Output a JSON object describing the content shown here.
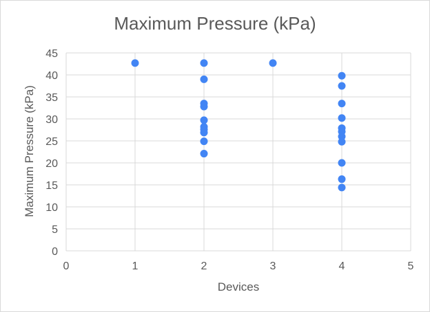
{
  "chart_data": {
    "type": "scatter",
    "title": "Maximum Pressure (kPa)",
    "xlabel": "Devices",
    "ylabel": "Maximum Pressure (kPa)",
    "xlim": [
      0,
      5
    ],
    "ylim": [
      0,
      45
    ],
    "xticks": [
      "0",
      "1",
      "2",
      "3",
      "4",
      "5"
    ],
    "yticks": [
      "0",
      "5",
      "10",
      "15",
      "20",
      "25",
      "30",
      "35",
      "40",
      "45"
    ],
    "grid": true,
    "legend": "none",
    "point_color": "#4285f4",
    "points": [
      {
        "x": 1,
        "y": 42.7
      },
      {
        "x": 2,
        "y": 42.7
      },
      {
        "x": 2,
        "y": 39.0
      },
      {
        "x": 2,
        "y": 33.5
      },
      {
        "x": 2,
        "y": 32.8
      },
      {
        "x": 2,
        "y": 29.7
      },
      {
        "x": 2,
        "y": 28.2
      },
      {
        "x": 2,
        "y": 27.6
      },
      {
        "x": 2,
        "y": 26.9
      },
      {
        "x": 2,
        "y": 24.9
      },
      {
        "x": 2,
        "y": 22.1
      },
      {
        "x": 3,
        "y": 42.7
      },
      {
        "x": 4,
        "y": 39.8
      },
      {
        "x": 4,
        "y": 37.5
      },
      {
        "x": 4,
        "y": 33.5
      },
      {
        "x": 4,
        "y": 30.2
      },
      {
        "x": 4,
        "y": 27.9
      },
      {
        "x": 4,
        "y": 27.1
      },
      {
        "x": 4,
        "y": 26.0
      },
      {
        "x": 4,
        "y": 24.8
      },
      {
        "x": 4,
        "y": 20.0
      },
      {
        "x": 4,
        "y": 16.3
      },
      {
        "x": 4,
        "y": 14.4
      }
    ]
  }
}
